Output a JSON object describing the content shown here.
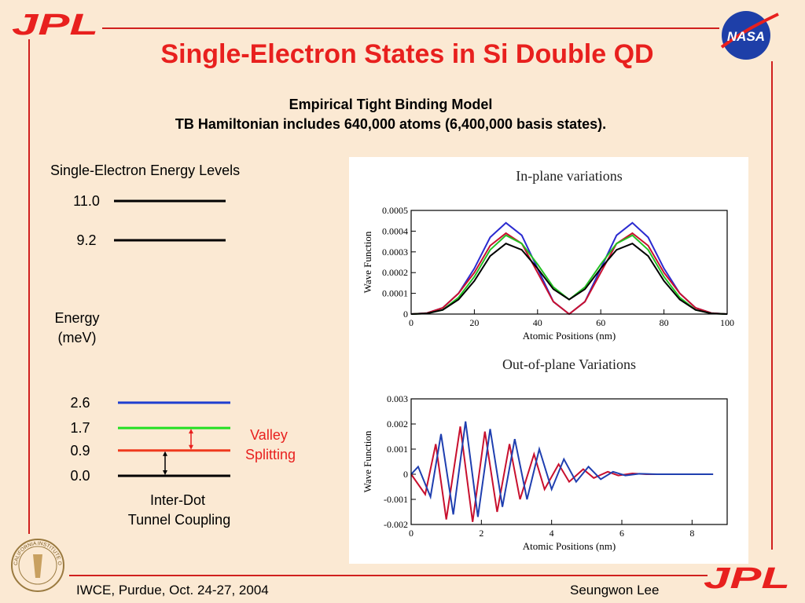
{
  "header": {
    "title": "Single-Electron States in Si Double QD",
    "subtitle": [
      "Empirical Tight Binding Model",
      "TB Hamiltonian includes 640,000 atoms (6,400,000 basis states)."
    ]
  },
  "logos": {
    "jpl": "JPL",
    "nasa": "NASA",
    "caltech_seal": "CALIFORNIA INSTITUTE OF TECHNOLOGY"
  },
  "energy_diagram": {
    "title": "Single-Electron Energy Levels",
    "axis_label": [
      "Energy",
      "(meV)"
    ],
    "levels": [
      {
        "value": 11.0,
        "label": "11.0",
        "color": "#000000"
      },
      {
        "value": 9.2,
        "label": "9.2",
        "color": "#000000"
      },
      {
        "value": 2.6,
        "label": "2.6",
        "color": "#1f3fd0"
      },
      {
        "value": 1.7,
        "label": "1.7",
        "color": "#22e022"
      },
      {
        "value": 0.9,
        "label": "0.9",
        "color": "#f03a1e"
      },
      {
        "value": 0.0,
        "label": "0.0",
        "color": "#000000"
      }
    ],
    "valley_label": [
      "Valley",
      "Splitting"
    ],
    "tunnel_label": [
      "Inter-Dot",
      "Tunnel Coupling"
    ]
  },
  "chart_data": [
    {
      "type": "line",
      "title": "In-plane variations",
      "x_label": "Atomic Positions (nm)",
      "y_label": "Wave Function",
      "xlim": [
        0,
        100
      ],
      "ylim": [
        0,
        0.0005
      ],
      "xticks": [
        0,
        20,
        40,
        60,
        80,
        100
      ],
      "yticks": [
        0,
        0.0001,
        0.0002,
        0.0003,
        0.0004,
        0.0005
      ],
      "series": [
        {
          "color": "#2a2ad0",
          "x": [
            0,
            5,
            10,
            15,
            20,
            25,
            30,
            35,
            40,
            45,
            50,
            55,
            60,
            65,
            70,
            75,
            80,
            85,
            90,
            95,
            100
          ],
          "values": [
            0,
            5e-06,
            3e-05,
            0.0001,
            0.00022,
            0.00037,
            0.00044,
            0.00038,
            0.00022,
            6e-05,
            0,
            6e-05,
            0.00022,
            0.00038,
            0.00044,
            0.00037,
            0.00022,
            0.0001,
            3e-05,
            5e-06,
            0
          ]
        },
        {
          "color": "#c8102e",
          "x": [
            0,
            5,
            10,
            15,
            20,
            25,
            30,
            35,
            40,
            45,
            50,
            55,
            60,
            65,
            70,
            75,
            80,
            85,
            90,
            95,
            100
          ],
          "values": [
            0,
            5e-06,
            3e-05,
            0.0001,
            0.0002,
            0.00033,
            0.00039,
            0.00034,
            0.0002,
            6e-05,
            0,
            6e-05,
            0.0002,
            0.00034,
            0.00039,
            0.00033,
            0.0002,
            0.0001,
            3e-05,
            5e-06,
            0
          ]
        },
        {
          "color": "#22c022",
          "x": [
            0,
            5,
            10,
            15,
            20,
            25,
            30,
            35,
            40,
            45,
            50,
            55,
            60,
            65,
            70,
            75,
            80,
            85,
            90,
            95,
            100
          ],
          "values": [
            0,
            3e-06,
            2e-05,
            8e-05,
            0.00018,
            0.00031,
            0.00038,
            0.00034,
            0.00024,
            0.00013,
            7e-05,
            0.00013,
            0.00024,
            0.00034,
            0.00038,
            0.00031,
            0.00018,
            8e-05,
            2e-05,
            3e-06,
            0
          ]
        },
        {
          "color": "#000000",
          "x": [
            0,
            5,
            10,
            15,
            20,
            25,
            30,
            35,
            40,
            45,
            50,
            55,
            60,
            65,
            70,
            75,
            80,
            85,
            90,
            95,
            100
          ],
          "values": [
            0,
            3e-06,
            2e-05,
            7e-05,
            0.00016,
            0.00028,
            0.00034,
            0.00031,
            0.00022,
            0.00012,
            7e-05,
            0.00012,
            0.00022,
            0.00031,
            0.00034,
            0.00028,
            0.00016,
            7e-05,
            2e-05,
            3e-06,
            0
          ]
        }
      ]
    },
    {
      "type": "line",
      "title": "Out-of-plane Variations",
      "x_label": "Atomic Positions (nm)",
      "y_label": "Wave Function",
      "xlim": [
        0,
        9
      ],
      "ylim": [
        -0.002,
        0.003
      ],
      "xticks": [
        0,
        2,
        4,
        6,
        8
      ],
      "yticks": [
        -0.002,
        -0.001,
        0,
        0.001,
        0.002,
        0.003
      ],
      "series": [
        {
          "color": "#c8102e",
          "x": [
            0,
            0.4,
            0.7,
            1.0,
            1.4,
            1.75,
            2.1,
            2.45,
            2.8,
            3.1,
            3.5,
            3.8,
            4.2,
            4.5,
            4.9,
            5.2,
            5.6,
            5.9,
            6.3,
            6.7,
            7.2,
            8.6
          ],
          "values": [
            0,
            -0.0008,
            0.0012,
            -0.0018,
            0.0019,
            -0.0019,
            0.0017,
            -0.0015,
            0.0012,
            -0.001,
            0.0008,
            -0.0006,
            0.0004,
            -0.0003,
            0.0002,
            -0.00015,
            0.0001,
            -5e-05,
            3e-05,
            0,
            0,
            0
          ]
        },
        {
          "color": "#1f3fb0",
          "x": [
            0,
            0.2,
            0.55,
            0.85,
            1.2,
            1.55,
            1.9,
            2.25,
            2.6,
            2.95,
            3.3,
            3.65,
            4.0,
            4.35,
            4.7,
            5.05,
            5.4,
            5.75,
            6.1,
            6.5,
            7.0,
            8.6
          ],
          "values": [
            0,
            0.0003,
            -0.0009,
            0.0016,
            -0.0016,
            0.0021,
            -0.0017,
            0.0018,
            -0.0013,
            0.0014,
            -0.001,
            0.001,
            -0.0006,
            0.0006,
            -0.0003,
            0.0003,
            -0.0002,
            0.0001,
            -5e-05,
            2e-05,
            0,
            0
          ]
        }
      ]
    }
  ],
  "footer": {
    "left": "IWCE, Purdue, Oct. 24-27, 2004",
    "right": "Seungwon Lee"
  }
}
